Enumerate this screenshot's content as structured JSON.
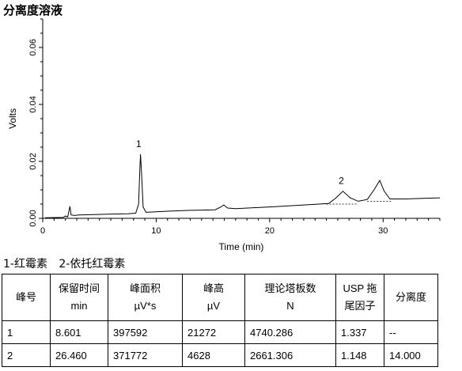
{
  "page": {
    "title": "分离度溶液",
    "legend_note": [
      "1-红霉素",
      "2-依托红霉素"
    ]
  },
  "chart_data": {
    "type": "line",
    "title": "",
    "xlabel": "Time (min)",
    "ylabel": "Volts",
    "xlim": [
      0,
      35
    ],
    "ylim": [
      0,
      0.07
    ],
    "xticks": [
      0,
      10,
      20,
      30
    ],
    "yticks": [
      0.0,
      0.02,
      0.04,
      0.06
    ],
    "ytick_labels": [
      "0.00",
      "0.02",
      "0.04",
      "0.06"
    ],
    "grid": false,
    "series": [
      {
        "values": [
          [
            0.2,
            0.0002
          ],
          [
            1.8,
            0.0003
          ],
          [
            2.0,
            0.0008
          ],
          [
            2.2,
            0.0005
          ],
          [
            2.4,
            0.0042
          ],
          [
            2.5,
            0.0012
          ],
          [
            2.8,
            0.001
          ],
          [
            3.2,
            0.0012
          ],
          [
            4.5,
            0.0013
          ],
          [
            6.0,
            0.0015
          ],
          [
            7.5,
            0.0016
          ],
          [
            8.2,
            0.0018
          ],
          [
            8.45,
            0.005
          ],
          [
            8.55,
            0.016
          ],
          [
            8.62,
            0.0225
          ],
          [
            8.72,
            0.015
          ],
          [
            8.85,
            0.004
          ],
          [
            9.1,
            0.0021
          ],
          [
            11.0,
            0.0025
          ],
          [
            13.0,
            0.0028
          ],
          [
            15.2,
            0.003
          ],
          [
            15.7,
            0.004
          ],
          [
            15.95,
            0.0047
          ],
          [
            16.3,
            0.0036
          ],
          [
            17.0,
            0.0034
          ],
          [
            20.0,
            0.004
          ],
          [
            23.0,
            0.0047
          ],
          [
            25.2,
            0.0052
          ],
          [
            25.8,
            0.007
          ],
          [
            26.46,
            0.0095
          ],
          [
            27.1,
            0.0072
          ],
          [
            27.8,
            0.006
          ],
          [
            28.6,
            0.0066
          ],
          [
            29.2,
            0.01
          ],
          [
            29.7,
            0.0133
          ],
          [
            30.1,
            0.0095
          ],
          [
            30.6,
            0.0068
          ],
          [
            32.0,
            0.0068
          ],
          [
            33.5,
            0.007
          ],
          [
            35.0,
            0.0072
          ]
        ]
      }
    ],
    "baselines": [
      [
        [
          25.0,
          0.005
        ],
        [
          27.8,
          0.005
        ]
      ],
      [
        [
          28.6,
          0.006
        ],
        [
          30.8,
          0.006
        ]
      ]
    ],
    "peak_labels": [
      {
        "text": "1",
        "x": 8.6,
        "y": 0.0245
      },
      {
        "text": "2",
        "x": 26.46,
        "y": 0.0115
      }
    ]
  },
  "table": {
    "headers": [
      [
        "峰号"
      ],
      [
        "保留时间",
        "min"
      ],
      [
        "峰面积",
        "µV*s"
      ],
      [
        "峰高",
        "µV"
      ],
      [
        "理论塔板数",
        "N"
      ],
      [
        "USP 拖",
        "尾因子"
      ],
      [
        "分离度"
      ]
    ],
    "rows": [
      [
        "1",
        "8.601",
        "397592",
        "21272",
        "4740.286",
        "1.337",
        "--"
      ],
      [
        "2",
        "26.460",
        "371772",
        "4628",
        "2661.306",
        "1.148",
        "14.000"
      ]
    ]
  },
  "colors": {
    "trace": "#000000",
    "baseline": "#000000"
  }
}
